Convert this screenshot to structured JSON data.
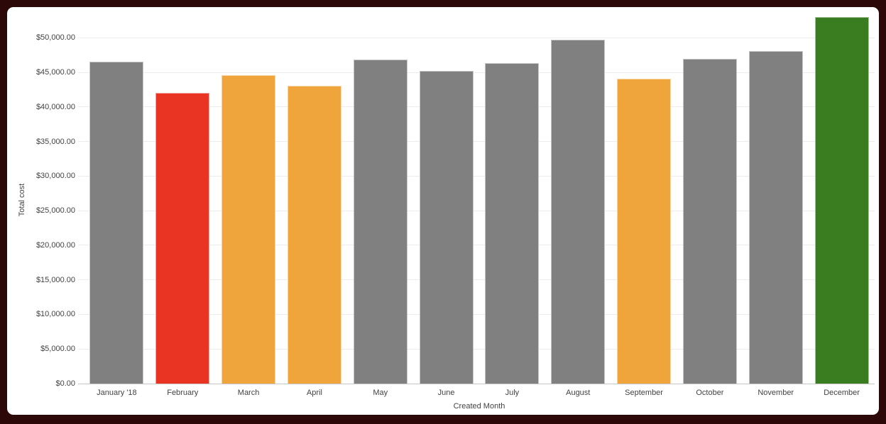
{
  "frame": {
    "border_color": "#2c0808",
    "card_background": "#ffffff",
    "gridline_color": "#ececec",
    "baseline_color": "#c6c6c6",
    "axis_text_color": "#424242"
  },
  "chart_data": {
    "type": "bar",
    "title": "",
    "xlabel": "Created Month",
    "ylabel": "Total cost",
    "categories": [
      "January '18",
      "February",
      "March",
      "April",
      "May",
      "June",
      "July",
      "August",
      "September",
      "October",
      "November",
      "December"
    ],
    "values": [
      46500,
      42000,
      44600,
      43100,
      46900,
      45200,
      46300,
      49700,
      44100,
      47000,
      48100,
      53000
    ],
    "bar_colors": [
      "#808080",
      "#e93423",
      "#f0a53c",
      "#f0a53c",
      "#808080",
      "#808080",
      "#808080",
      "#808080",
      "#f0a53c",
      "#808080",
      "#808080",
      "#3a7d20"
    ],
    "status_colors": {
      "default": "#808080",
      "alert": "#e93423",
      "warning": "#f0a53c",
      "good": "#3a7d20"
    },
    "ylim": [
      0,
      53000
    ],
    "grid": true,
    "legend": "none",
    "yticks": [
      {
        "value": 0,
        "label": "$0.00"
      },
      {
        "value": 5000,
        "label": "$5,000.00"
      },
      {
        "value": 10000,
        "label": "$10,000.00"
      },
      {
        "value": 15000,
        "label": "$15,000.00"
      },
      {
        "value": 20000,
        "label": "$20,000.00"
      },
      {
        "value": 25000,
        "label": "$25,000.00"
      },
      {
        "value": 30000,
        "label": "$30,000.00"
      },
      {
        "value": 35000,
        "label": "$35,000.00"
      },
      {
        "value": 40000,
        "label": "$40,000.00"
      },
      {
        "value": 45000,
        "label": "$45,000.00"
      },
      {
        "value": 50000,
        "label": "$50,000.00"
      }
    ]
  }
}
